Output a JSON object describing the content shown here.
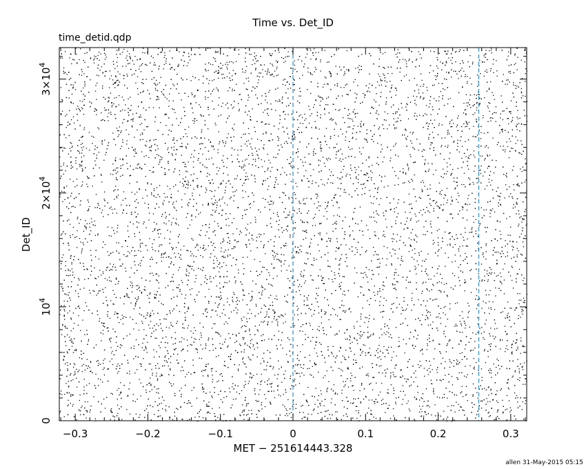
{
  "chart_data": {
    "type": "scatter",
    "title": "Time vs. Det_ID",
    "subtitle": "time_detid.qdp",
    "xlabel": "MET − 251614443.328",
    "ylabel": "Det_ID",
    "xlim": [
      -0.322,
      0.322
    ],
    "ylim": [
      0,
      32768
    ],
    "x_ticks": [
      {
        "value": -0.3,
        "label": "−0.3"
      },
      {
        "value": -0.2,
        "label": "−0.2"
      },
      {
        "value": -0.1,
        "label": "−0.1"
      },
      {
        "value": 0,
        "label": "0"
      },
      {
        "value": 0.1,
        "label": "0.1"
      },
      {
        "value": 0.2,
        "label": "0.2"
      },
      {
        "value": 0.3,
        "label": "0.3"
      }
    ],
    "y_ticks": [
      {
        "value": 0,
        "mant": "0",
        "exp": ""
      },
      {
        "value": 10000,
        "mant": "10",
        "exp": "4"
      },
      {
        "value": 20000,
        "mant": "2×10",
        "exp": "4"
      },
      {
        "value": 30000,
        "mant": "3×10",
        "exp": "4"
      }
    ],
    "vlines": [
      {
        "x": 0.0,
        "color": "#2b8cbe",
        "style": "dashed"
      },
      {
        "x": 0.256,
        "color": "#2b8cbe",
        "style": "dashed"
      }
    ],
    "series": [
      {
        "n_points_approx": 9000,
        "x_range": [
          -0.322,
          0.322
        ],
        "y_range": [
          0,
          32768
        ],
        "distribution": "uniform",
        "marker_color": "#000000"
      }
    ],
    "grid": false,
    "legend": "none"
  },
  "footer": {
    "stamp": "allen 31-May-2015 05:15"
  }
}
